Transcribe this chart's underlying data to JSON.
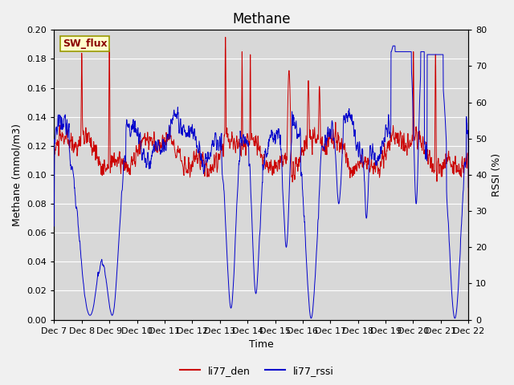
{
  "title": "Methane",
  "ylabel_left": "Methane (mmol/m3)",
  "ylabel_right": "RSSI (%)",
  "xlabel": "Time",
  "annotation_text": "SW_flux",
  "annotation_bg": "#ffffcc",
  "annotation_border": "#999900",
  "annotation_text_color": "#8b0000",
  "ylim_left": [
    0.0,
    0.2
  ],
  "ylim_right": [
    0,
    80
  ],
  "yticks_left": [
    0.0,
    0.02,
    0.04,
    0.06,
    0.08,
    0.1,
    0.12,
    0.14,
    0.16,
    0.18,
    0.2
  ],
  "yticks_right": [
    0,
    10,
    20,
    30,
    40,
    50,
    60,
    70,
    80
  ],
  "xtick_labels": [
    "Dec 7",
    "Dec 8",
    "Dec 9",
    "Dec 10",
    "Dec 11",
    "Dec 12",
    "Dec 13",
    "Dec 14",
    "Dec 15",
    "Dec 16",
    "Dec 17",
    "Dec 18",
    "Dec 19",
    "Dec 20",
    "Dec 21",
    "Dec 22"
  ],
  "line1_color": "#cc0000",
  "line2_color": "#0000cc",
  "legend_label1": "li77_den",
  "legend_label2": "li77_rssi",
  "plot_bg_color": "#d8d8d8",
  "fig_bg_color": "#f0f0f0",
  "grid_color": "#ffffff",
  "title_fontsize": 12,
  "axis_label_fontsize": 9,
  "tick_fontsize": 8
}
